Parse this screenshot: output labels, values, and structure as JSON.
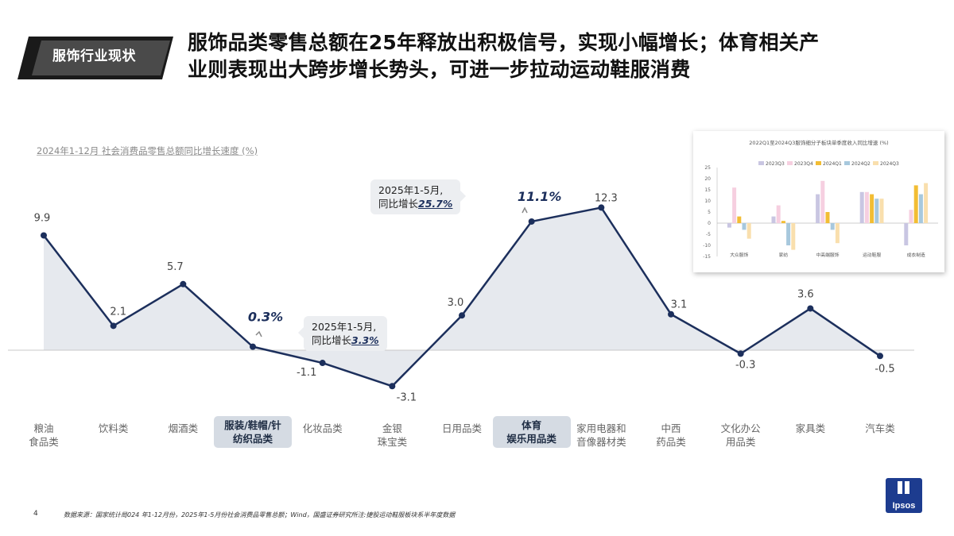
{
  "header": {
    "section_tag": "服饰行业现状",
    "headline_line1": "服饰品类零售总额在25年释放出积极信号，实现小幅增长；体育相关产",
    "headline_line2": "业则表现出大跨步增长势头，可进一步拉动运动鞋服消费"
  },
  "chart_data": [
    {
      "type": "line",
      "title": "2024年1-12月 社会消费品零售总额同比增长速度 (%)",
      "categories": [
        [
          "粮油",
          "食品类"
        ],
        [
          "饮料类"
        ],
        [
          "烟酒类"
        ],
        [
          "服装/鞋帽/针",
          "纺织品类"
        ],
        [
          "化妆品类"
        ],
        [
          "金银",
          "珠宝类"
        ],
        [
          "日用品类"
        ],
        [
          "体育",
          "娱乐用品类"
        ],
        [
          "家用电器和",
          "音像器材类"
        ],
        [
          "中西",
          "药品类"
        ],
        [
          "文化办公",
          "用品类"
        ],
        [
          "家具类"
        ],
        [
          "汽车类"
        ]
      ],
      "values": [
        9.9,
        2.1,
        5.7,
        0.3,
        -1.1,
        -3.1,
        3.0,
        11.1,
        12.3,
        3.1,
        -0.3,
        3.6,
        -0.5
      ],
      "value_labels": [
        "9.9",
        "2.1",
        "5.7",
        "0.3%",
        "-1.1",
        "-3.1",
        "3.0",
        "11.1%",
        "12.3",
        "3.1",
        "-0.3",
        "3.6",
        "-0.5"
      ],
      "highlighted_categories": [
        3,
        7
      ],
      "ylim": [
        -4,
        13
      ],
      "grid": false,
      "colors": {
        "line": "#1c2f5c",
        "area": "#e6e9ee",
        "highlight_label": "#1c2f5c"
      },
      "annotations": [
        {
          "category_index": 7,
          "line1": "2025年1-5月,",
          "line2_prefix": "同比增长",
          "value": "25.7%"
        },
        {
          "category_index": 3,
          "line1": "2025年1-5月,",
          "line2_prefix": "同比增长",
          "value": "3.3%"
        }
      ]
    },
    {
      "type": "bar",
      "title": "2022Q1至2024Q3服饰细分子板块单季度收入同比增速 (%)",
      "categories": [
        "大众服饰",
        "家纺",
        "中高端服饰",
        "运动鞋服",
        "成衣制造"
      ],
      "series": [
        {
          "name": "2023Q3",
          "color": "#c9c6e2",
          "values": [
            -2,
            3,
            13,
            14,
            -10
          ]
        },
        {
          "name": "2023Q4",
          "color": "#f6cfe0",
          "values": [
            16,
            8,
            19,
            14,
            6
          ]
        },
        {
          "name": "2024Q1",
          "color": "#f2bd34",
          "values": [
            3,
            1,
            5,
            13,
            17
          ]
        },
        {
          "name": "2024Q2",
          "color": "#a7c8dd",
          "values": [
            -3,
            -10,
            -3,
            11,
            13
          ]
        },
        {
          "name": "2024Q3",
          "color": "#f9dfad",
          "values": [
            -7,
            -12,
            -9,
            11,
            18
          ]
        }
      ],
      "ylim": [
        -15,
        25
      ],
      "yticks": [
        -15,
        -10,
        -5,
        0,
        5,
        10,
        15,
        20,
        25
      ],
      "legend": "top"
    }
  ],
  "footer": {
    "page_number": "4",
    "source": "数据来源：国家统计局024 年1-12月份，2025年1-5月份社会消费品零售总额；Wind，国盛证券研究所注:捷股运动鞋服板块系半年度数据",
    "logo_text": "Ipsos"
  }
}
